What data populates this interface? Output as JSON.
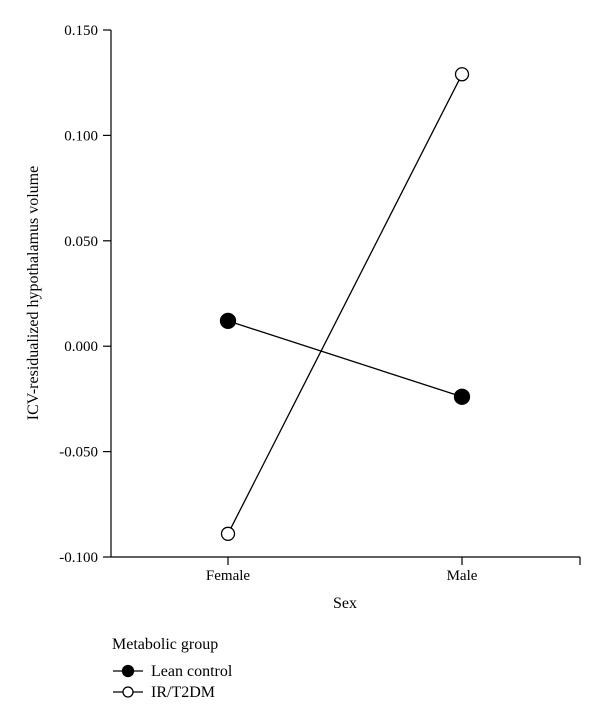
{
  "chart_data": {
    "type": "line",
    "xlabel": "Sex",
    "ylabel": "ICV-residualized hypothalamus volume",
    "categories": [
      "Female",
      "Male"
    ],
    "ylim": [
      -0.1,
      0.15
    ],
    "yticks": [
      "-0.100",
      "-0.050",
      "0.000",
      "0.050",
      "0.100",
      "0.150"
    ],
    "grid": false,
    "legend_title": "Metabolic group",
    "legend_position": "bottom-left",
    "series": [
      {
        "name": "Lean control",
        "marker": "filled-circle",
        "values": [
          0.012,
          -0.024
        ]
      },
      {
        "name": "IR/T2DM",
        "marker": "open-circle",
        "values": [
          -0.089,
          0.129
        ]
      }
    ]
  }
}
